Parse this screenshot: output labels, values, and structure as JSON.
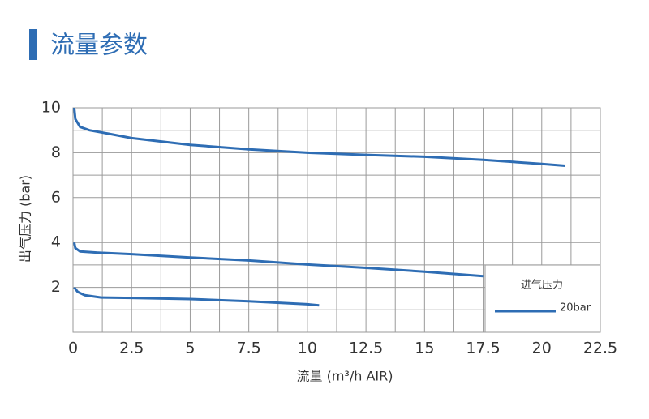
{
  "chart_data": {
    "type": "line",
    "title": "流量参数",
    "x_label": "流量 (m³/h AIR)",
    "y_label": "出气压力 (bar)",
    "legend_title": "进气压力",
    "legend_position": "lower right",
    "xlim": [
      0,
      22.5
    ],
    "xticks": [
      0,
      2.5,
      5,
      7.5,
      10,
      12.5,
      15,
      17.5,
      20,
      22.5
    ],
    "ylim": [
      0,
      10
    ],
    "yticks": [
      2,
      4,
      6,
      8,
      10
    ],
    "grid": true,
    "series": [
      {
        "name": "20bar",
        "color": "#2e6db4",
        "x": [
          0.05,
          0.1,
          0.3,
          0.7,
          1.5,
          2.5,
          5,
          7.5,
          10,
          12.5,
          15,
          17.5,
          20,
          21
        ],
        "values": [
          10,
          9.5,
          9.15,
          9.0,
          8.85,
          8.65,
          8.35,
          8.15,
          8.0,
          7.9,
          7.82,
          7.68,
          7.5,
          7.42
        ]
      },
      {
        "color": "#2e6db4",
        "x": [
          0.05,
          0.1,
          0.3,
          1,
          2.5,
          5,
          7.5,
          10,
          12.5,
          15,
          17.5
        ],
        "values": [
          4.0,
          3.75,
          3.6,
          3.55,
          3.48,
          3.33,
          3.2,
          3.02,
          2.87,
          2.7,
          2.5
        ]
      },
      {
        "color": "#2e6db4",
        "x": [
          0.05,
          0.2,
          0.5,
          1.2,
          2.5,
          5,
          7.5,
          10,
          10.5
        ],
        "values": [
          2.0,
          1.8,
          1.65,
          1.55,
          1.53,
          1.48,
          1.38,
          1.25,
          1.2
        ]
      }
    ]
  }
}
